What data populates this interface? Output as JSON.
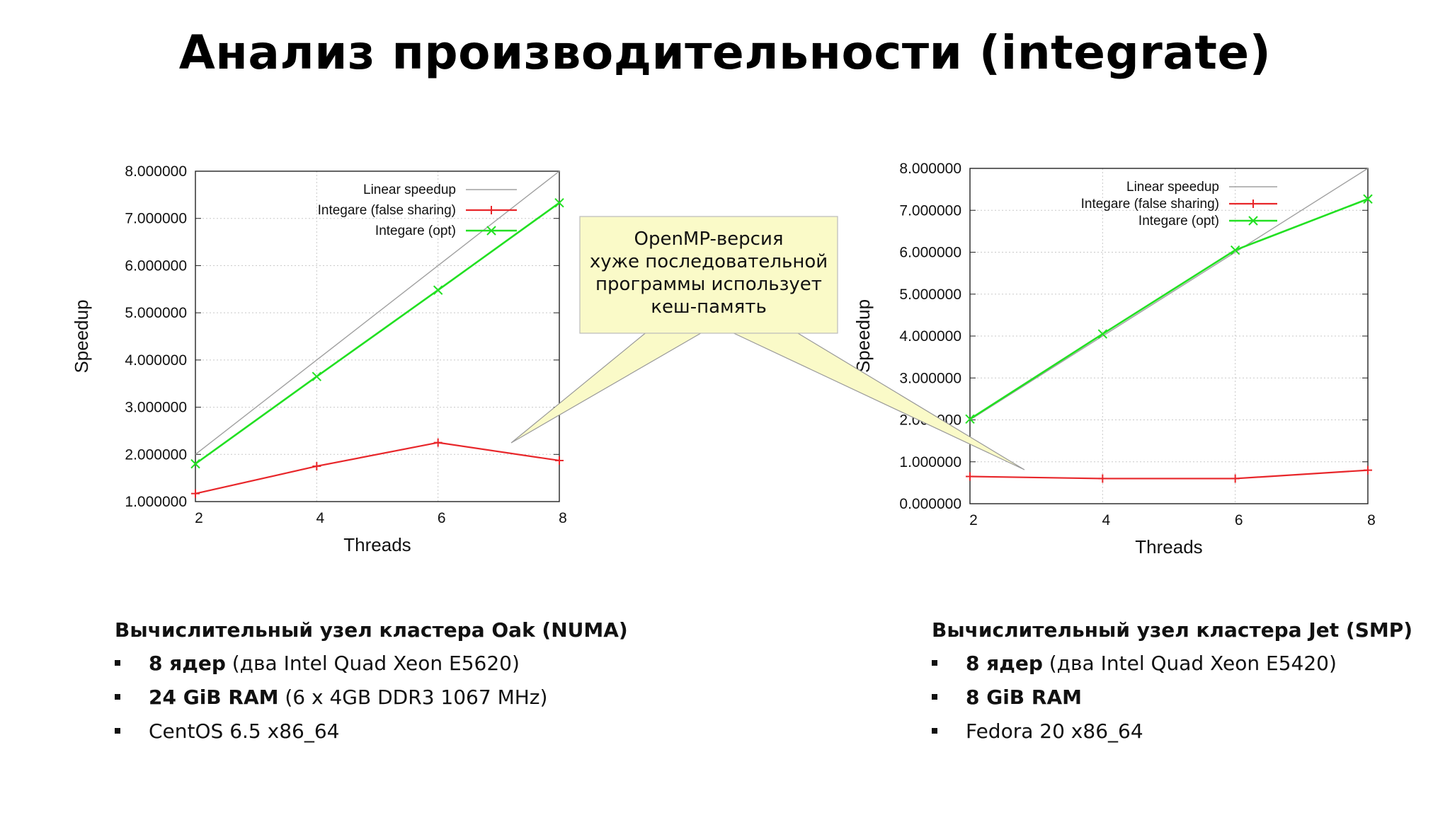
{
  "title": "Анализ производительности (integrate)",
  "callout": {
    "lines": [
      "OpenMP-версия",
      "хуже последовательной",
      "программы использует",
      "кеш-память"
    ]
  },
  "colors": {
    "linear": "#a0a0a0",
    "false_sharing": "#e8262a",
    "opt": "#22e022",
    "callout_fill": "#fafac8"
  },
  "chart_data": [
    {
      "type": "line",
      "xlabel": "Threads",
      "ylabel": "Speedup",
      "x": [
        2,
        4,
        6,
        8
      ],
      "xticks": [
        "2",
        "4",
        "6",
        "8"
      ],
      "yticks": [
        "1.000000",
        "2.000000",
        "3.000000",
        "4.000000",
        "5.000000",
        "6.000000",
        "7.000000",
        "8.000000"
      ],
      "xlim": [
        2,
        8
      ],
      "ylim": [
        1,
        8
      ],
      "grid": true,
      "legend": "top-right",
      "series": [
        {
          "name": "Linear speedup",
          "values": [
            2,
            4,
            6,
            8
          ]
        },
        {
          "name": "Integare (false sharing)",
          "values": [
            1.17,
            1.75,
            2.25,
            1.87
          ]
        },
        {
          "name": "Integare (opt)",
          "values": [
            1.8,
            3.65,
            5.48,
            7.33
          ]
        }
      ]
    },
    {
      "type": "line",
      "xlabel": "Threads",
      "ylabel": "Speedup",
      "x": [
        2,
        4,
        6,
        8
      ],
      "xticks": [
        "2",
        "4",
        "6",
        "8"
      ],
      "yticks": [
        "0.000000",
        "1.000000",
        "2.000000",
        "3.000000",
        "4.000000",
        "5.000000",
        "6.000000",
        "7.000000",
        "8.000000"
      ],
      "xlim": [
        2,
        8
      ],
      "ylim": [
        0,
        8
      ],
      "grid": true,
      "legend": "top-right",
      "series": [
        {
          "name": "Linear speedup",
          "values": [
            2,
            4,
            6,
            8
          ]
        },
        {
          "name": "Integare (false sharing)",
          "values": [
            0.65,
            0.6,
            0.6,
            0.8
          ]
        },
        {
          "name": "Integare (opt)",
          "values": [
            2.02,
            4.05,
            6.05,
            7.27
          ]
        }
      ]
    }
  ],
  "info_left": {
    "title": "Вычислительный узел кластера Oak (NUMA)",
    "items": [
      {
        "bold": "8 ядер",
        "text": " (два Intel Quad Xeon E5620)"
      },
      {
        "bold": "24 GiB RAM",
        "text": " (6 x 4GB DDR3 1067 MHz)"
      },
      {
        "bold": "",
        "text": "CentOS 6.5 x86_64"
      }
    ]
  },
  "info_right": {
    "title": "Вычислительный узел кластера Jet (SMP)",
    "items": [
      {
        "bold": "8 ядер",
        "text": " (два Intel Quad Xeon E5420)"
      },
      {
        "bold": "8 GiB RAM",
        "text": ""
      },
      {
        "bold": "",
        "text": "Fedora 20 x86_64"
      }
    ]
  }
}
